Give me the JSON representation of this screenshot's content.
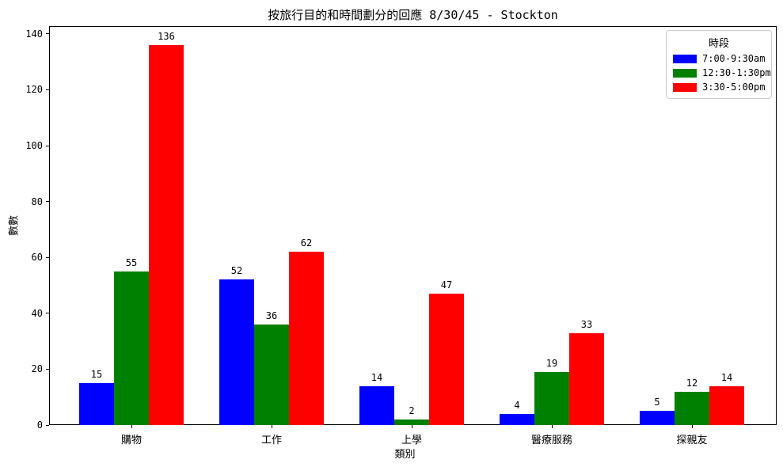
{
  "chart_data": {
    "type": "bar",
    "title": "按旅行目的和時間劃分的回應 8/30/45 - Stockton",
    "xlabel": "類別",
    "ylabel": "數數",
    "categories": [
      "購物",
      "工作",
      "上學",
      "醫療服務",
      "探親友"
    ],
    "series": [
      {
        "name": "7:00-9:30am",
        "color": "#0000ff",
        "values": [
          15,
          52,
          14,
          4,
          5
        ]
      },
      {
        "name": "12:30-1:30pm",
        "color": "#008000",
        "values": [
          55,
          36,
          2,
          19,
          12
        ]
      },
      {
        "name": "3:30-5:00pm",
        "color": "#ff0000",
        "values": [
          136,
          62,
          47,
          33,
          14
        ]
      }
    ],
    "legend_title": "時段",
    "legend_position": "upper right",
    "ylim": [
      0,
      142.8
    ],
    "yticks": [
      0,
      20,
      40,
      60,
      80,
      100,
      120,
      140
    ],
    "grid": false,
    "bar_value_labels": true
  }
}
